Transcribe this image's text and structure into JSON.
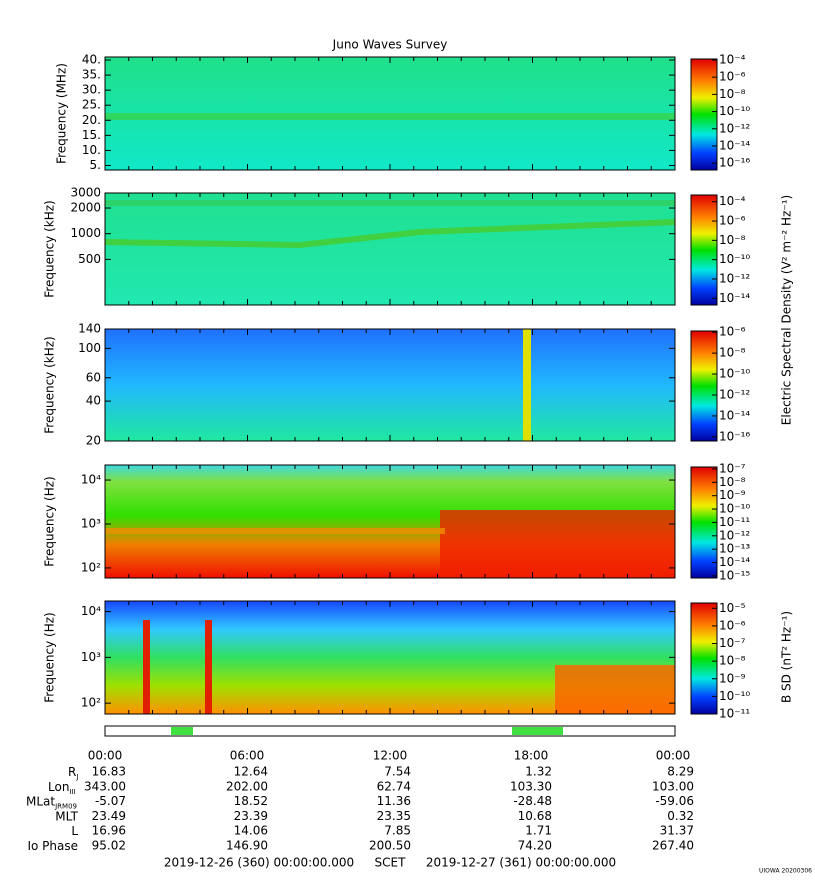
{
  "title": "Juno Waves Survey",
  "panels": [
    {
      "ylabel": "Frequency (MHz)",
      "yscale": "linear",
      "ylim": [
        3.5,
        41
      ],
      "yticks": [
        {
          "value": 5,
          "label": "5."
        },
        {
          "value": 10,
          "label": "10."
        },
        {
          "value": 15,
          "label": "15."
        },
        {
          "value": 20,
          "label": "20."
        },
        {
          "value": 25,
          "label": "25."
        },
        {
          "value": 30,
          "label": "30."
        },
        {
          "value": 35,
          "label": "35."
        },
        {
          "value": 40,
          "label": "40."
        }
      ],
      "zlim": [
        1.6e-17,
        0.00013
      ],
      "zticks": [
        {
          "value": 0.0001,
          "label": "10⁻⁴"
        },
        {
          "value": 1e-06,
          "label": "10⁻⁶"
        },
        {
          "value": 1e-08,
          "label": "10⁻⁸"
        },
        {
          "value": 1e-10,
          "label": "10⁻¹⁰"
        },
        {
          "value": 1e-12,
          "label": "10⁻¹²"
        },
        {
          "value": 1e-14,
          "label": "10⁻¹⁴"
        },
        {
          "value": 1e-16,
          "label": "10⁻¹⁶"
        }
      ]
    },
    {
      "ylabel": "Frequency (kHz)",
      "yscale": "log",
      "ylim": [
        146,
        3000
      ],
      "yticks": [
        500,
        1000,
        2000,
        3000
      ],
      "zlim": [
        2e-15,
        0.0005
      ],
      "zticks": [
        {
          "value": 0.0001,
          "label": "10⁻⁴"
        },
        {
          "value": 1e-06,
          "label": "10⁻⁶"
        },
        {
          "value": 1e-08,
          "label": "10⁻⁸"
        },
        {
          "value": 1e-10,
          "label": "10⁻¹⁰"
        },
        {
          "value": 1e-12,
          "label": "10⁻¹²"
        },
        {
          "value": 1e-14,
          "label": "10⁻¹⁴"
        }
      ]
    },
    {
      "ylabel": "Frequency (kHz)",
      "yscale": "log",
      "ylim": [
        20,
        140
      ],
      "yticks": [
        20,
        40,
        60,
        100,
        140
      ],
      "zlim": [
        4e-17,
        1.3e-06
      ],
      "zticks": [
        {
          "value": 1e-06,
          "label": "10⁻⁶"
        },
        {
          "value": 1e-08,
          "label": "10⁻⁸"
        },
        {
          "value": 1e-10,
          "label": "10⁻¹⁰"
        },
        {
          "value": 1e-12,
          "label": "10⁻¹²"
        },
        {
          "value": 1e-14,
          "label": "10⁻¹⁴"
        },
        {
          "value": 1e-16,
          "label": "10⁻¹⁶"
        }
      ]
    },
    {
      "ylabel": "Frequency (Hz)",
      "yscale": "log",
      "ylim": [
        59,
        22000
      ],
      "yticks": [
        {
          "value": 100,
          "label": "10²"
        },
        {
          "value": 1000,
          "label": "10³"
        },
        {
          "value": 10000,
          "label": "10⁴"
        }
      ],
      "zlim": [
        7e-16,
        1.4e-07
      ],
      "zticks": [
        {
          "value": 1e-07,
          "label": "10⁻⁷"
        },
        {
          "value": 1e-08,
          "label": "10⁻⁸"
        },
        {
          "value": 1e-09,
          "label": "10⁻⁹"
        },
        {
          "value": 1e-10,
          "label": "10⁻¹⁰"
        },
        {
          "value": 1e-11,
          "label": "10⁻¹¹"
        },
        {
          "value": 1e-12,
          "label": "10⁻¹²"
        },
        {
          "value": 1e-13,
          "label": "10⁻¹³"
        },
        {
          "value": 1e-14,
          "label": "10⁻¹⁴"
        },
        {
          "value": 1e-15,
          "label": "10⁻¹⁵"
        }
      ]
    },
    {
      "ylabel": "Frequency (Hz)",
      "yscale": "log",
      "ylim": [
        58,
        17000
      ],
      "yticks": [
        {
          "value": 100,
          "label": "10²"
        },
        {
          "value": 1000,
          "label": "10³"
        },
        {
          "value": 10000,
          "label": "10⁴"
        }
      ],
      "zlim": [
        1e-11,
        2e-05
      ],
      "zticks": [
        {
          "value": 1e-05,
          "label": "10⁻⁵"
        },
        {
          "value": 1e-06,
          "label": "10⁻⁶"
        },
        {
          "value": 1e-07,
          "label": "10⁻⁷"
        },
        {
          "value": 1e-08,
          "label": "10⁻⁸"
        },
        {
          "value": 1e-09,
          "label": "10⁻⁹"
        },
        {
          "value": 1e-10,
          "label": "10⁻¹⁰"
        },
        {
          "value": 1e-11,
          "label": "10⁻¹¹"
        }
      ]
    }
  ],
  "e_label": "Electric Spectral Density (V² m⁻² Hz⁻¹)",
  "b_label": "B SD (nT² Hz⁻¹)",
  "ephemeris": {
    "times": [
      "00:00",
      "06:00",
      "12:00",
      "18:00",
      "00:00"
    ],
    "rows": [
      {
        "label": "R",
        "sub": "J",
        "values": [
          "16.83",
          "12.64",
          "7.54",
          "1.32",
          "8.29"
        ]
      },
      {
        "label": "Lon",
        "sub": "III",
        "values": [
          "343.00",
          "202.00",
          "62.74",
          "103.30",
          "103.00"
        ]
      },
      {
        "label": "MLat",
        "sub": "JRM09",
        "values": [
          "-5.07",
          "18.52",
          "11.36",
          "-28.48",
          "-59.06"
        ]
      },
      {
        "label": "MLT",
        "values": [
          "23.49",
          "23.39",
          "23.35",
          "10.68",
          "0.32"
        ]
      },
      {
        "label": "L",
        "values": [
          "16.96",
          "14.06",
          "7.85",
          "1.71",
          "31.37"
        ]
      },
      {
        "label": "Io Phase",
        "values": [
          "95.02",
          "146.90",
          "200.50",
          "74.20",
          "267.40"
        ]
      }
    ]
  },
  "footer": {
    "start": "2019-12-26 (360) 00:00:00.000",
    "scet": "SCET",
    "end": "2019-12-27 (361) 00:00:00.000",
    "stamp": "UIOWA 20200306"
  }
}
